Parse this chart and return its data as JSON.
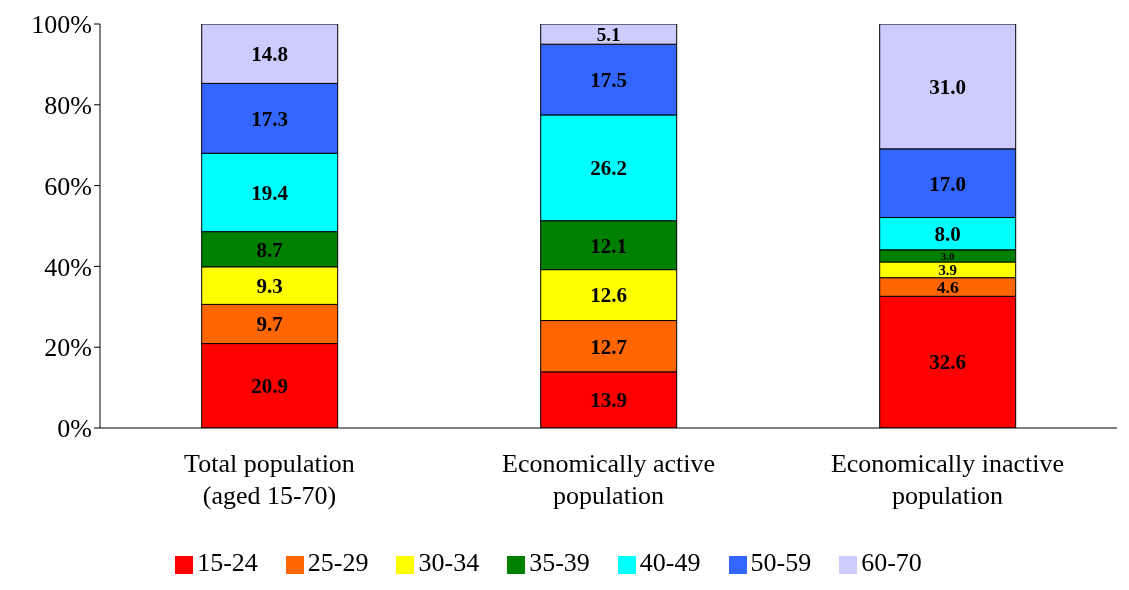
{
  "chart_data": {
    "type": "bar",
    "stacked": true,
    "categories": [
      "Total population (aged 15-70)",
      "Economically active population",
      "Economically inactive population"
    ],
    "series": [
      {
        "name": "15-24",
        "color": "#ff0000",
        "values": [
          20.9,
          13.9,
          32.6
        ],
        "value_labels": [
          "20.9",
          "13.9",
          "32.6"
        ]
      },
      {
        "name": "25-29",
        "color": "#ff6600",
        "values": [
          9.7,
          12.7,
          4.6
        ],
        "value_labels": [
          "9.7",
          "12.7",
          "4.6"
        ]
      },
      {
        "name": "30-34",
        "color": "#ffff00",
        "values": [
          9.3,
          12.6,
          3.9
        ],
        "value_labels": [
          "9.3",
          "12.6",
          "3.9"
        ]
      },
      {
        "name": "35-39",
        "color": "#008000",
        "values": [
          8.7,
          12.1,
          3.0
        ],
        "value_labels": [
          "8.7",
          "12.1",
          "3.0"
        ]
      },
      {
        "name": "40-49",
        "color": "#00ffff",
        "values": [
          19.4,
          26.2,
          8.0
        ],
        "value_labels": [
          "19.4",
          "26.2",
          "8.0"
        ]
      },
      {
        "name": "50-59",
        "color": "#3366ff",
        "values": [
          17.3,
          17.5,
          17.0
        ],
        "value_labels": [
          "17.3",
          "17.5",
          "17.0"
        ]
      },
      {
        "name": "60-70",
        "color": "#ccccff",
        "values": [
          14.8,
          5.1,
          31.0
        ],
        "value_labels": [
          "14.8",
          "5.1",
          "31.0"
        ]
      }
    ],
    "ylim": [
      0,
      100
    ],
    "yticks": [
      {
        "value": 0,
        "label": "0%"
      },
      {
        "value": 20,
        "label": "20%"
      },
      {
        "value": 40,
        "label": "40%"
      },
      {
        "value": 60,
        "label": "60%"
      },
      {
        "value": 80,
        "label": "80%"
      },
      {
        "value": 100,
        "label": "100%"
      }
    ],
    "grid": false,
    "legend": "bottom"
  }
}
